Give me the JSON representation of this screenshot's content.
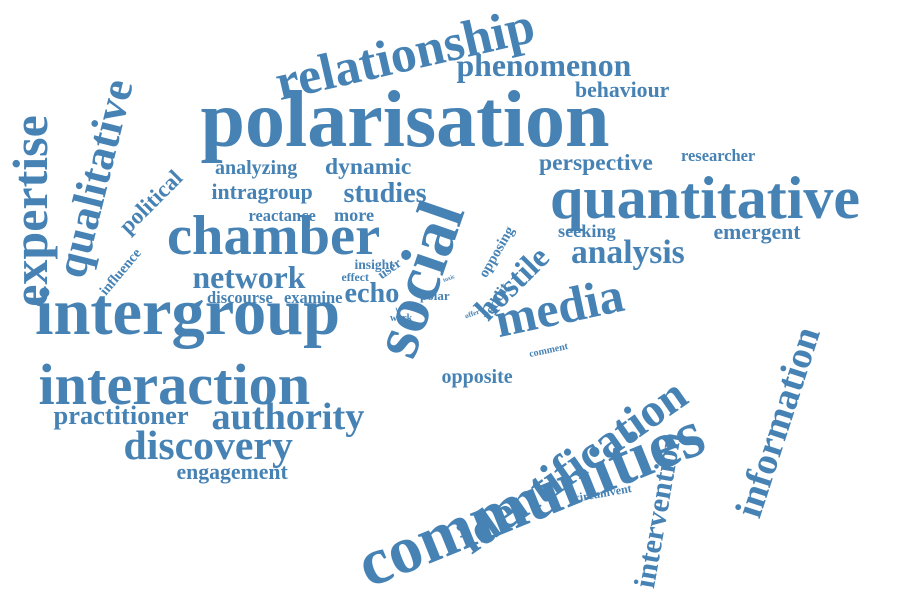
{
  "word_cloud": {
    "text_color": "#4682b4",
    "background_color": "#ffffff",
    "words": [
      "communities",
      "social",
      "polarisation",
      "intergroup",
      "interaction",
      "media",
      "chamber",
      "quantitative",
      "identification",
      "relationship",
      "qualitative",
      "expertise",
      "discovery",
      "authority",
      "information",
      "intervention",
      "analysis",
      "phenomenon",
      "network",
      "studies",
      "perspective",
      "echo",
      "behaviour",
      "practitioner",
      "dynamic",
      "analyzing",
      "intragroup",
      "engagement",
      "hostile",
      "political",
      "emergent",
      "opposite",
      "more",
      "researcher",
      "circumvent",
      "seeking",
      "reactance",
      "discourse",
      "examine",
      "user",
      "opposing",
      "reddit",
      "comment",
      "influence",
      "insight",
      "effect",
      "polar",
      "toxic",
      "level",
      "work",
      "offer"
    ]
  }
}
